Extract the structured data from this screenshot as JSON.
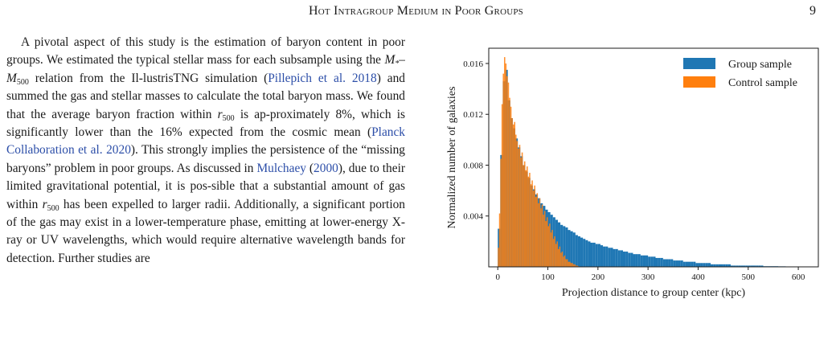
{
  "header": {
    "running_head": "Hot Intragroup Medium in Poor Groups",
    "page_number": "9"
  },
  "text": {
    "p1": "A pivotal aspect of this study is the estimation of baryon content in poor groups. We estimated the typical stellar mass for each subsample using the ",
    "m_star": "M",
    "m_star_sub": "*",
    "dash": "–",
    "m500": "M",
    "m500_sub": "500",
    "p2": " relation from the Il-lustrisTNG simulation (",
    "cite1": "Pillepich et al. 2018",
    "p3": ") and summed the gas and stellar masses to calculate the total baryon mass. We found that the average baryon fraction within ",
    "r1": "r",
    "r1_sub": "500",
    "p4": " is ap-proximately 8%, which is significantly lower than the 16% expected from the cosmic mean (",
    "cite2": "Planck Collaboration et al. 2020",
    "p5": "). This strongly implies the persistence of the “missing baryons” problem in poor groups. As discussed in ",
    "cite3": "Mulchaey",
    "p6": " (",
    "cite3_year": "2000",
    "p7": "), due to their limited gravitational potential, it is pos-sible that a substantial amount of gas within ",
    "r2": "r",
    "r2_sub": "500",
    "p8": " has been expelled to larger radii. Additionally, a significant portion of the gas may exist in a lower-temperature phase, emitting at lower-energy X-ray or UV wavelengths, which would require alternative wavelength bands for detection. Further studies are"
  },
  "colors": {
    "group": "#1f77b4",
    "control": "#ff7f0e",
    "cite": "#2c4ea8",
    "axis": "#1a1a1a"
  },
  "chart_data": {
    "type": "bar",
    "xlabel": "Projection distance to group center (kpc)",
    "ylabel": "Normalized number of galaxies",
    "xlim": [
      -18,
      640
    ],
    "ylim": [
      0,
      0.0172
    ],
    "xticks": [
      0,
      100,
      200,
      300,
      400,
      500,
      600
    ],
    "yticks": [
      0.004,
      0.008,
      0.012,
      0.016
    ],
    "xtick_labels": [
      "0",
      "100",
      "200",
      "300",
      "400",
      "500",
      "600"
    ],
    "ytick_labels": [
      "0.004",
      "0.008",
      "0.012",
      "0.016"
    ],
    "legend_position": "top-right",
    "grid": false,
    "series": [
      {
        "name": "Group sample",
        "bin_width": 5,
        "bin_starts": [
          0,
          5,
          10,
          15,
          20,
          25,
          30,
          35,
          40,
          45,
          50,
          55,
          60,
          65,
          70,
          75,
          80,
          85,
          90,
          95,
          100,
          105,
          110,
          115,
          120,
          125,
          130,
          135,
          140,
          145,
          150,
          155,
          160,
          165,
          170,
          175,
          180,
          185,
          190,
          195,
          200,
          205,
          210,
          215,
          220,
          225,
          230,
          235,
          240,
          245,
          250,
          255,
          260,
          265,
          270,
          275,
          280,
          285,
          290,
          295,
          300,
          305,
          310,
          315,
          320,
          325,
          330,
          335,
          340,
          345,
          350,
          355,
          360,
          365,
          370,
          375,
          380,
          385,
          390,
          395,
          400,
          405,
          410,
          415,
          420,
          425,
          430,
          435,
          440,
          445,
          450,
          455,
          460,
          465,
          470,
          475,
          480,
          485,
          490,
          495,
          500,
          505,
          510,
          515,
          520,
          525,
          530,
          535,
          540,
          545,
          550,
          555,
          560,
          565,
          570,
          575,
          580,
          585,
          590,
          595,
          600,
          605,
          610,
          615,
          620,
          625
        ],
        "values": [
          0.003,
          0.0088,
          0.0146,
          0.0155,
          0.0131,
          0.0117,
          0.0109,
          0.0101,
          0.0094,
          0.0087,
          0.008,
          0.0075,
          0.007,
          0.0064,
          0.0061,
          0.0057,
          0.0054,
          0.005,
          0.0048,
          0.0045,
          0.0043,
          0.0041,
          0.0039,
          0.0037,
          0.0035,
          0.0033,
          0.0032,
          0.0031,
          0.0029,
          0.0028,
          0.0027,
          0.0025,
          0.0024,
          0.0023,
          0.0022,
          0.0021,
          0.002,
          0.0019,
          0.0019,
          0.0018,
          0.0018,
          0.0017,
          0.0016,
          0.0016,
          0.0015,
          0.0015,
          0.0014,
          0.0014,
          0.0013,
          0.0013,
          0.0012,
          0.0012,
          0.0011,
          0.0011,
          0.001,
          0.001,
          0.001,
          0.0009,
          0.0009,
          0.0009,
          0.0008,
          0.0008,
          0.0008,
          0.0007,
          0.0007,
          0.0007,
          0.0006,
          0.0006,
          0.0006,
          0.0006,
          0.0005,
          0.0005,
          0.0005,
          0.0005,
          0.0004,
          0.0004,
          0.0004,
          0.0004,
          0.0004,
          0.0003,
          0.0003,
          0.0003,
          0.0003,
          0.0003,
          0.0003,
          0.0002,
          0.0002,
          0.0002,
          0.0002,
          0.0002,
          0.0002,
          0.0002,
          0.0002,
          0.0001,
          0.0001,
          0.0001,
          0.0001,
          0.0001,
          0.0001,
          0.0001,
          0.0001,
          0.0001,
          0.0001,
          0.0001,
          0.0001,
          0.0001,
          5e-05,
          5e-05,
          5e-05,
          5e-05,
          5e-05,
          5e-05,
          4e-05,
          4e-05,
          4e-05,
          3e-05,
          3e-05,
          3e-05,
          3e-05,
          2e-05,
          2e-05,
          2e-05,
          2e-05,
          0,
          0,
          0
        ]
      },
      {
        "name": "Control sample",
        "bin_width": 2.5,
        "bin_starts": [
          0,
          2.5,
          5,
          7.5,
          10,
          12.5,
          15,
          17.5,
          20,
          22.5,
          25,
          27.5,
          30,
          32.5,
          35,
          37.5,
          40,
          42.5,
          45,
          47.5,
          50,
          52.5,
          55,
          57.5,
          60,
          62.5,
          65,
          67.5,
          70,
          72.5,
          75,
          77.5,
          80,
          82.5,
          85,
          87.5,
          90,
          92.5,
          95,
          97.5,
          100,
          102.5,
          105,
          107.5,
          110,
          112.5,
          115,
          117.5,
          120,
          122.5,
          125,
          127.5,
          130,
          132.5,
          135,
          137.5,
          140,
          142.5,
          145,
          147.5,
          150,
          152.5,
          155,
          157.5,
          160
        ],
        "values": [
          0.0015,
          0.0042,
          0.0085,
          0.0128,
          0.0152,
          0.0165,
          0.016,
          0.015,
          0.0145,
          0.0133,
          0.0126,
          0.0117,
          0.0112,
          0.0114,
          0.0104,
          0.0099,
          0.0093,
          0.0096,
          0.0086,
          0.009,
          0.008,
          0.0083,
          0.0076,
          0.0079,
          0.0071,
          0.0074,
          0.0065,
          0.0068,
          0.006,
          0.0064,
          0.0055,
          0.0058,
          0.005,
          0.0054,
          0.0046,
          0.0049,
          0.0041,
          0.0044,
          0.0036,
          0.0039,
          0.0032,
          0.0034,
          0.0027,
          0.0029,
          0.0022,
          0.0024,
          0.0018,
          0.002,
          0.0014,
          0.0016,
          0.0011,
          0.0012,
          0.0008,
          0.0009,
          0.0006,
          0.0006,
          0.0004,
          0.0004,
          0.0003,
          0.0003,
          0.0002,
          0.0002,
          0.0001,
          0.0001,
          5e-05
        ]
      }
    ]
  }
}
